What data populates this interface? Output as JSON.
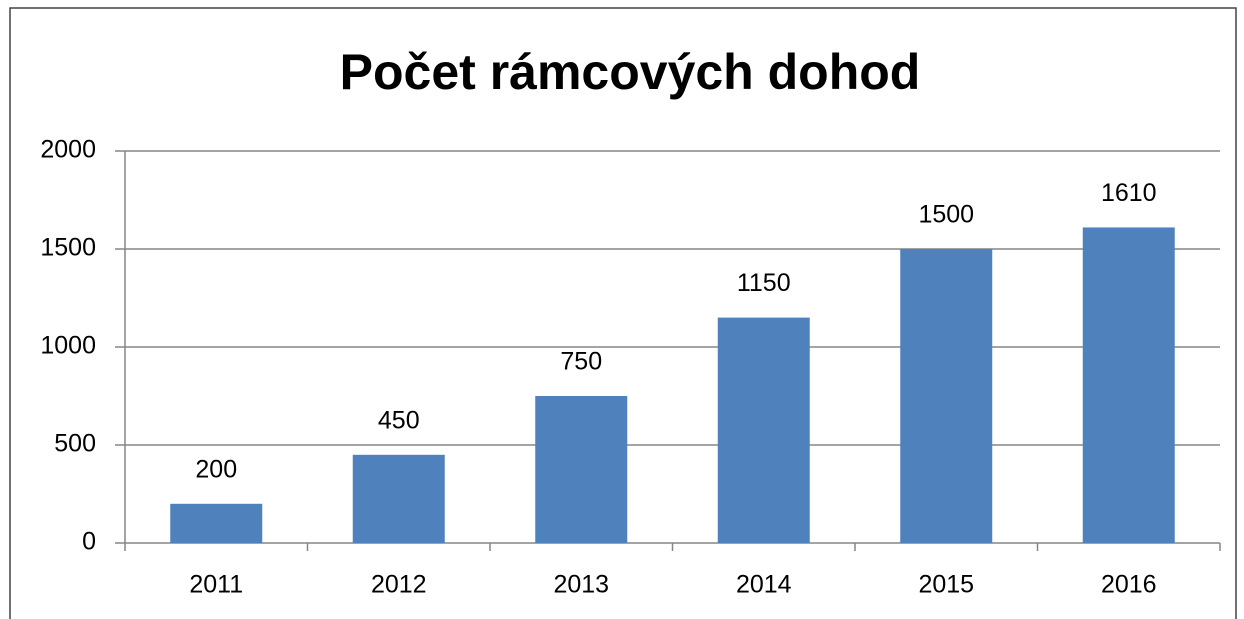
{
  "chart_data": {
    "type": "bar",
    "title": "Počet rámcových dohod",
    "categories": [
      "2011",
      "2012",
      "2013",
      "2014",
      "2015",
      "2016"
    ],
    "values": [
      200,
      450,
      750,
      1150,
      1500,
      1610
    ],
    "color": "#4f81bd",
    "ylim": [
      0,
      2000
    ],
    "yticks": [
      0,
      500,
      1000,
      1500,
      2000
    ],
    "grid": true
  }
}
